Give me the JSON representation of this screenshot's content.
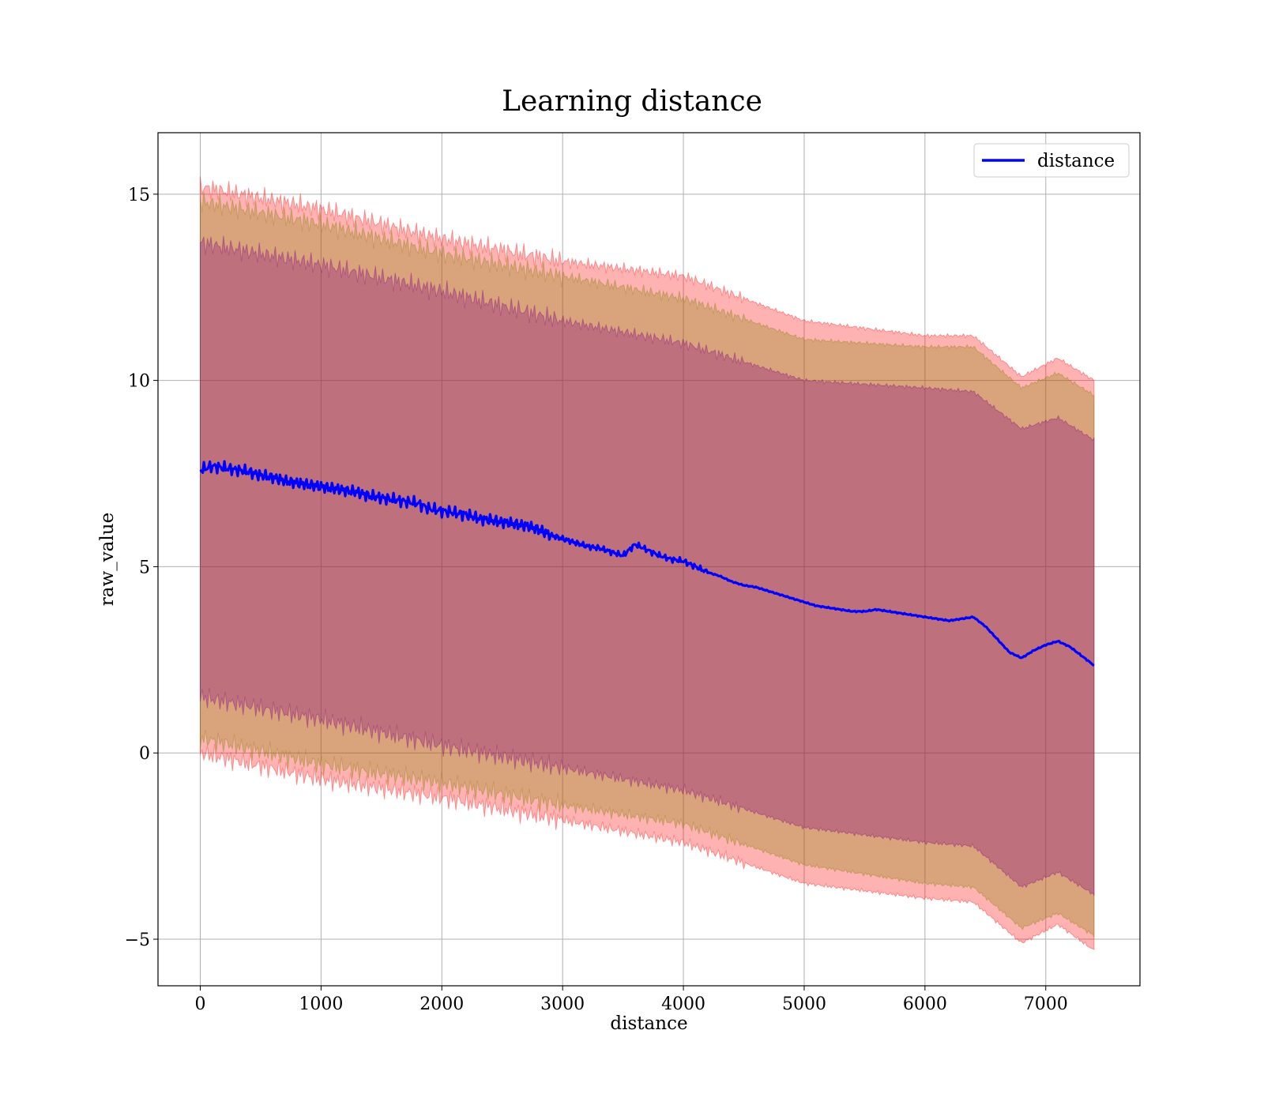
{
  "chart_data": {
    "type": "line",
    "title": "Learning distance",
    "xlabel": "distance",
    "ylabel": "raw_value",
    "xlim": [
      -350,
      7780
    ],
    "ylim": [
      -6.25,
      16.65
    ],
    "xticks": [
      0,
      1000,
      2000,
      3000,
      4000,
      5000,
      6000,
      7000
    ],
    "xtick_labels": [
      "0",
      "1000",
      "2000",
      "3000",
      "4000",
      "5000",
      "6000",
      "7000"
    ],
    "yticks": [
      -5,
      0,
      5,
      10,
      15
    ],
    "ytick_labels": [
      "−5",
      "0",
      "5",
      "10",
      "15"
    ],
    "grid": true,
    "legend": {
      "position": "top-right",
      "entries": [
        "distance"
      ]
    },
    "series": [
      {
        "name": "distance",
        "color": "#0000ff",
        "x": [
          0,
          100,
          200,
          300,
          400,
          500,
          600,
          700,
          800,
          900,
          1000,
          1100,
          1200,
          1300,
          1400,
          1500,
          1600,
          1700,
          1800,
          1900,
          2000,
          2100,
          2200,
          2300,
          2400,
          2500,
          2600,
          2700,
          2800,
          2900,
          3000,
          3100,
          3200,
          3300,
          3400,
          3500,
          3600,
          3700,
          3800,
          3900,
          4000,
          4100,
          4200,
          4300,
          4400,
          4500,
          4600,
          4700,
          4800,
          4900,
          5000,
          5100,
          5200,
          5300,
          5400,
          5500,
          5600,
          5700,
          5800,
          5900,
          6000,
          6100,
          6200,
          6300,
          6400,
          6500,
          6600,
          6700,
          6800,
          6900,
          7000,
          7100,
          7200,
          7300,
          7400
        ],
        "values": [
          7.6,
          7.7,
          7.65,
          7.6,
          7.55,
          7.45,
          7.4,
          7.3,
          7.25,
          7.2,
          7.15,
          7.1,
          7.05,
          7.0,
          6.9,
          6.85,
          6.8,
          6.75,
          6.7,
          6.55,
          6.5,
          6.45,
          6.4,
          6.3,
          6.25,
          6.2,
          6.15,
          6.1,
          6.0,
          5.85,
          5.75,
          5.65,
          5.55,
          5.5,
          5.4,
          5.3,
          5.6,
          5.45,
          5.3,
          5.2,
          5.15,
          5.0,
          4.85,
          4.75,
          4.6,
          4.5,
          4.45,
          4.35,
          4.25,
          4.15,
          4.05,
          3.95,
          3.9,
          3.85,
          3.8,
          3.8,
          3.85,
          3.8,
          3.75,
          3.7,
          3.65,
          3.6,
          3.55,
          3.6,
          3.65,
          3.4,
          3.05,
          2.7,
          2.55,
          2.75,
          2.9,
          3.0,
          2.85,
          2.6,
          2.35
        ]
      }
    ],
    "bands": [
      {
        "color": "#ff0000",
        "opacity": 0.3,
        "x": [
          0,
          1000,
          2000,
          3000,
          4000,
          5000,
          6000,
          6400,
          6800,
          7100,
          7400
        ],
        "upper": [
          15.2,
          14.6,
          13.8,
          13.2,
          12.8,
          11.6,
          11.2,
          11.2,
          10.1,
          10.6,
          10.0
        ],
        "lower": [
          0.0,
          -0.7,
          -1.2,
          -1.8,
          -2.4,
          -3.5,
          -3.9,
          -4.0,
          -5.1,
          -4.6,
          -5.3
        ]
      },
      {
        "color": "#808000",
        "opacity": 0.3,
        "x": [
          0,
          1000,
          2000,
          3000,
          4000,
          5000,
          6000,
          6400,
          6800,
          7100,
          7400
        ],
        "upper": [
          14.8,
          14.2,
          13.4,
          12.8,
          12.2,
          11.1,
          10.9,
          10.9,
          9.8,
          10.2,
          9.6
        ],
        "lower": [
          0.4,
          -0.3,
          -0.8,
          -1.4,
          -1.9,
          -3.0,
          -3.5,
          -3.6,
          -4.7,
          -4.3,
          -4.9
        ]
      },
      {
        "color": "#800080",
        "opacity": 0.3,
        "x": [
          0,
          1000,
          2000,
          3000,
          4000,
          5000,
          6000,
          6400,
          6800,
          7100,
          7400
        ],
        "upper": [
          13.7,
          13.1,
          12.4,
          11.6,
          11.0,
          10.0,
          9.8,
          9.7,
          8.7,
          9.0,
          8.4
        ],
        "lower": [
          1.5,
          0.9,
          0.2,
          -0.4,
          -1.0,
          -2.0,
          -2.4,
          -2.5,
          -3.6,
          -3.2,
          -3.8
        ]
      }
    ]
  }
}
